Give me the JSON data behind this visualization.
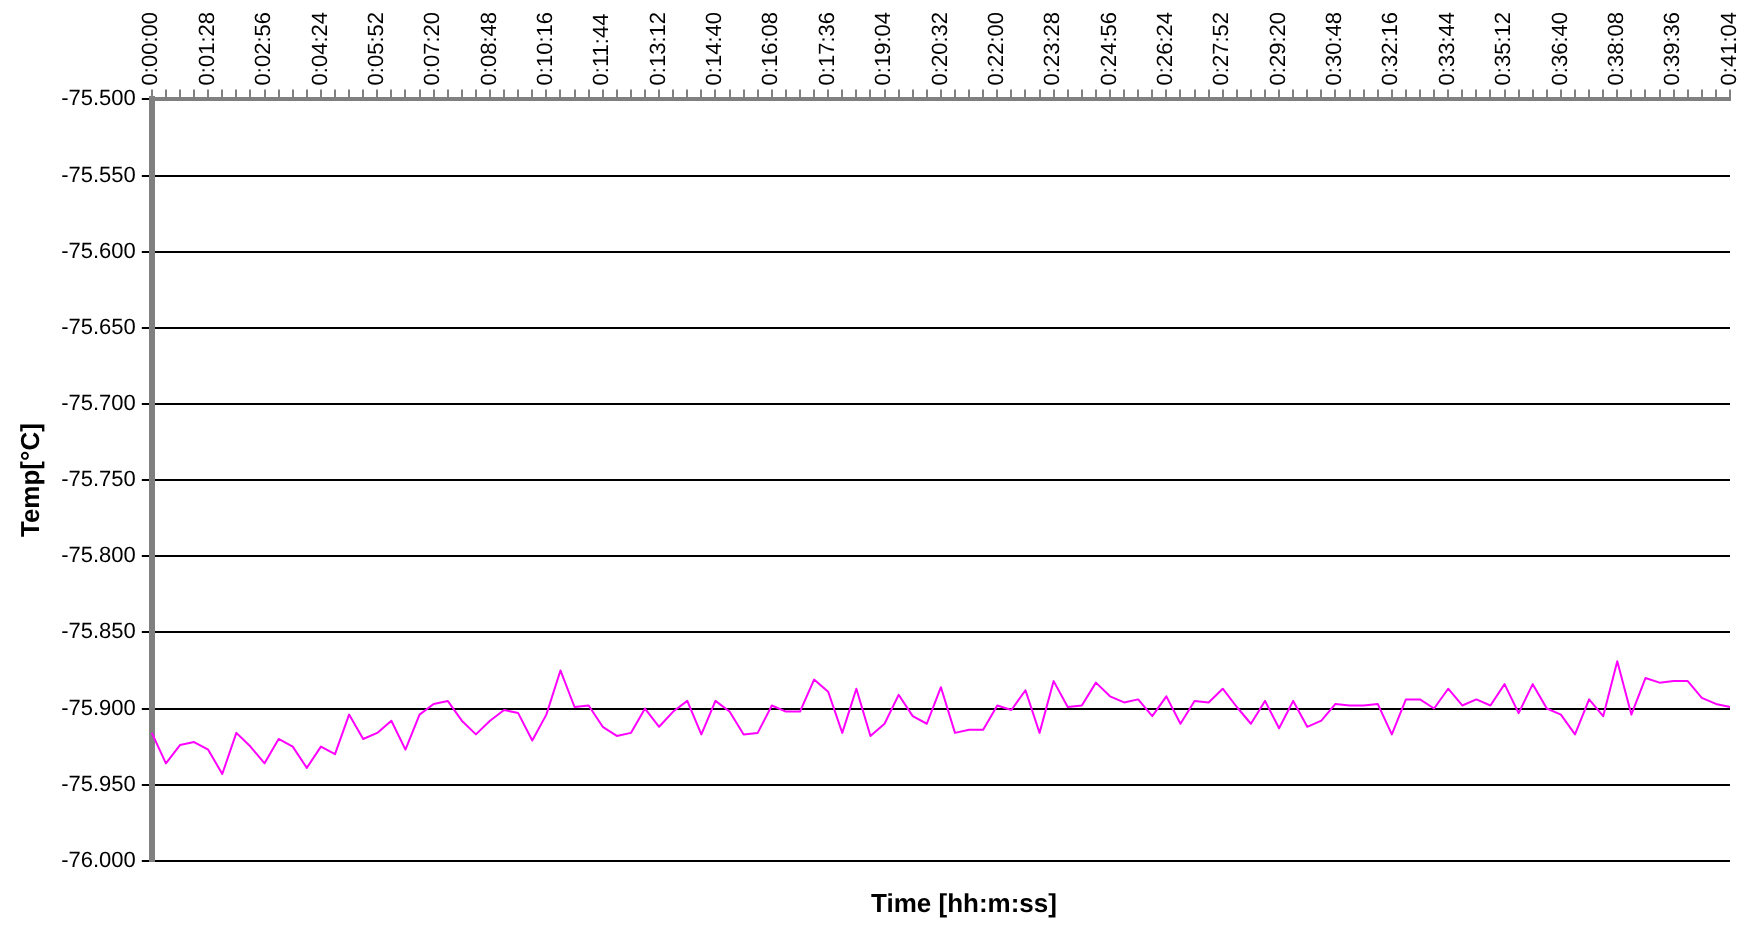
{
  "chart_data": {
    "type": "line",
    "xlabel": "Time [hh:m:ss]",
    "ylabel": "Temp[°C]",
    "categories": [
      "0:00:00",
      null,
      null,
      null,
      "0:01:28",
      null,
      null,
      null,
      "0:02:56",
      null,
      null,
      null,
      "0:04:24",
      null,
      null,
      null,
      "0:05:52",
      null,
      null,
      null,
      "0:07:20",
      null,
      null,
      null,
      "0:08:48",
      null,
      null,
      null,
      "0:10:16",
      null,
      null,
      null,
      "0:11:44",
      null,
      null,
      null,
      "0:13:12",
      null,
      null,
      null,
      "0:14:40",
      null,
      null,
      null,
      "0:16:08",
      null,
      null,
      null,
      "0:17:36",
      null,
      null,
      null,
      "0:19:04",
      null,
      null,
      null,
      "0:20:32",
      null,
      null,
      null,
      "0:22:00",
      null,
      null,
      null,
      "0:23:28",
      null,
      null,
      null,
      "0:24:56",
      null,
      null,
      null,
      "0:26:24",
      null,
      null,
      null,
      "0:27:52",
      null,
      null,
      null,
      "0:29:20",
      null,
      null,
      null,
      "0:30:48",
      null,
      null,
      null,
      "0:32:16",
      null,
      null,
      null,
      "0:33:44",
      null,
      null,
      null,
      "0:35:12",
      null,
      null,
      null,
      "0:36:40",
      null,
      null,
      null,
      "0:38:08",
      null,
      null,
      null,
      "0:39:36",
      null,
      null,
      null,
      "0:41:04"
    ],
    "series": [
      {
        "color": "#ff00ff",
        "values": [
          -75.916,
          -75.936,
          -75.924,
          -75.922,
          -75.927,
          -75.943,
          -75.916,
          -75.925,
          -75.936,
          -75.92,
          -75.925,
          -75.939,
          -75.925,
          -75.93,
          -75.904,
          -75.92,
          -75.916,
          -75.908,
          -75.927,
          -75.904,
          -75.897,
          -75.895,
          -75.908,
          -75.917,
          -75.908,
          -75.901,
          -75.903,
          -75.921,
          -75.904,
          -75.875,
          -75.899,
          -75.898,
          -75.912,
          -75.918,
          -75.916,
          -75.9,
          -75.912,
          -75.902,
          -75.895,
          -75.917,
          -75.895,
          -75.902,
          -75.917,
          -75.916,
          -75.898,
          -75.902,
          -75.902,
          -75.881,
          -75.889,
          -75.916,
          -75.887,
          -75.918,
          -75.91,
          -75.891,
          -75.905,
          -75.91,
          -75.886,
          -75.916,
          -75.914,
          -75.914,
          -75.898,
          -75.901,
          -75.888,
          -75.916,
          -75.882,
          -75.899,
          -75.898,
          -75.883,
          -75.892,
          -75.896,
          -75.894,
          -75.905,
          -75.892,
          -75.91,
          -75.895,
          -75.896,
          -75.887,
          -75.899,
          -75.91,
          -75.895,
          -75.913,
          -75.895,
          -75.912,
          -75.908,
          -75.897,
          -75.898,
          -75.898,
          -75.897,
          -75.917,
          -75.894,
          -75.894,
          -75.9,
          -75.887,
          -75.898,
          -75.894,
          -75.898,
          -75.884,
          -75.903,
          -75.884,
          -75.9,
          -75.904,
          -75.917,
          -75.894,
          -75.905,
          -75.869,
          -75.904,
          -75.88,
          -75.883,
          -75.882,
          -75.882,
          -75.893,
          -75.897,
          -75.899
        ]
      }
    ],
    "ylim": [
      -76.0,
      -75.5
    ],
    "yticks": [
      {
        "value": -76.0,
        "label": "-76.000"
      },
      {
        "value": -75.95,
        "label": "-75.950"
      },
      {
        "value": -75.9,
        "label": "-75.900"
      },
      {
        "value": -75.85,
        "label": "-75.850"
      },
      {
        "value": -75.8,
        "label": "-75.800"
      },
      {
        "value": -75.75,
        "label": "-75.750"
      },
      {
        "value": -75.7,
        "label": "-75.700"
      },
      {
        "value": -75.65,
        "label": "-75.650"
      },
      {
        "value": -75.6,
        "label": "-75.600"
      },
      {
        "value": -75.55,
        "label": "-75.550"
      },
      {
        "value": -75.5,
        "label": "-75.500"
      }
    ],
    "grid": "y",
    "legend": false,
    "line_style": "solid"
  }
}
